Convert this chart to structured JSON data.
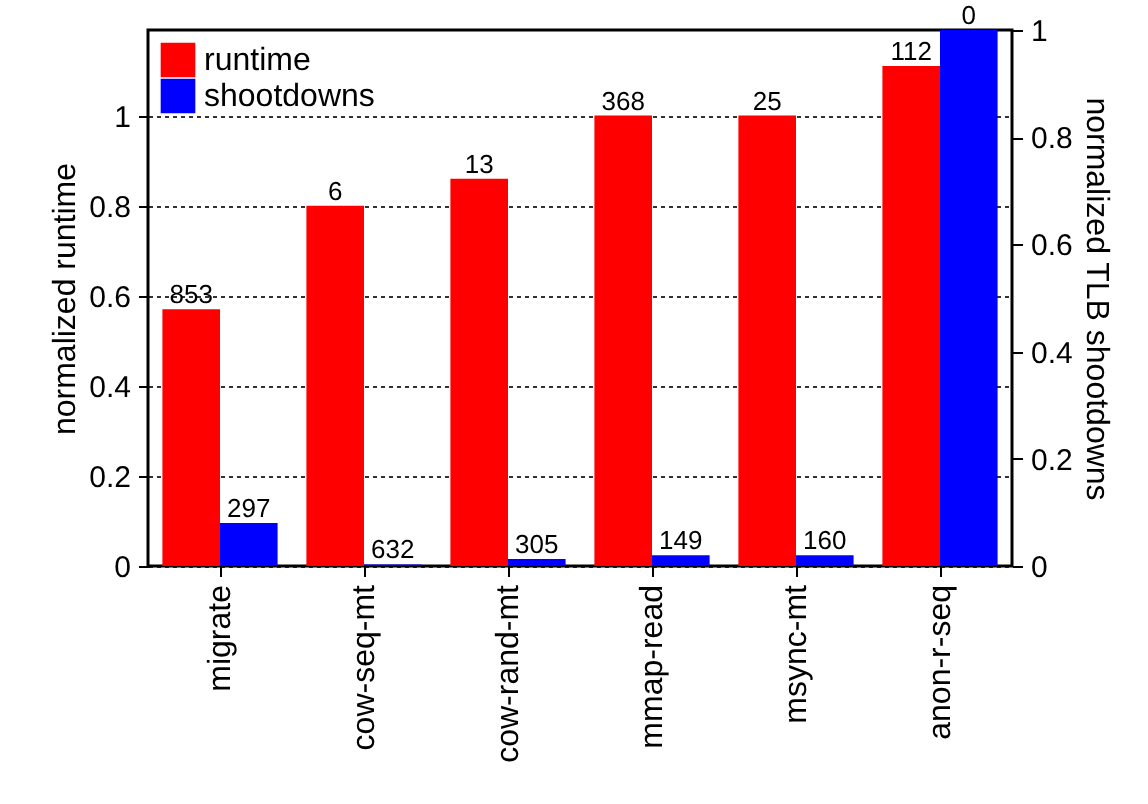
{
  "chart_data": {
    "type": "bar",
    "ylabel": "normalized runtime",
    "y2label": "normalized TLB shootdowns",
    "categories": [
      "migrate",
      "cow-seq-mt",
      "cow-rand-mt",
      "mmap-read",
      "msync-mt",
      "anon-r-seq"
    ],
    "series": [
      {
        "name": "runtime",
        "color": "#ff0000",
        "values": [
          0.57,
          0.8,
          0.86,
          1.0,
          1.0,
          1.11
        ]
      },
      {
        "name": "shootdowns",
        "color": "#0000ff",
        "axis": "y2",
        "values": [
          0.08,
          0.003,
          0.013,
          0.02,
          0.02,
          1.0
        ]
      }
    ],
    "annotations": [
      {
        "text": "853",
        "x": "migrate",
        "y": 0.57
      },
      {
        "text": "6",
        "x": "cow-seq-mt",
        "y": 0.8
      },
      {
        "text": "13",
        "x": "cow-rand-mt",
        "y": 0.86
      },
      {
        "text": "368",
        "x": "mmap-read",
        "y": 1.0
      },
      {
        "text": "25",
        "x": "msync-mt",
        "y": 1.0
      },
      {
        "text": "112",
        "x": "anon-r-seq",
        "y": 1.11
      },
      {
        "text": "297",
        "x": "migrate",
        "y": 0.095
      },
      {
        "text": "632",
        "x": "cow-seq-mt",
        "y": 0.004
      },
      {
        "text": "305",
        "x": "cow-rand-mt",
        "y": 0.015
      },
      {
        "text": "149",
        "x": "mmap-read",
        "y": 0.024
      },
      {
        "text": "160",
        "x": "msync-mt",
        "y": 0.024
      },
      {
        "text": "0",
        "x": "anon-r-seq",
        "y": 1.19
      }
    ],
    "ylim": [
      0,
      1.19
    ],
    "yticks": [
      0,
      0.2,
      0.4,
      0.6,
      0.8,
      1
    ],
    "y2lim": [
      0,
      1
    ],
    "y2ticks": [
      0,
      0.2,
      0.4,
      0.6,
      0.8,
      1
    ],
    "grid": "y",
    "legend": "top left"
  }
}
